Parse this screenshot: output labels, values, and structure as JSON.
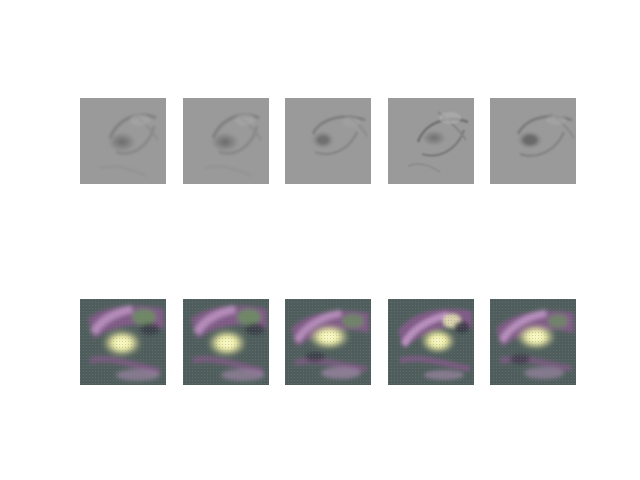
{
  "figure": {
    "rows": 2,
    "cols": 5,
    "top_row": {
      "description_key": "grayscale",
      "colors": {
        "background": "#9a9a9a",
        "dark": "#6e6e6e",
        "light": "#b0b0b0"
      },
      "panels": [
        {
          "id": "g1",
          "variant": "a"
        },
        {
          "id": "g2",
          "variant": "a"
        },
        {
          "id": "g3",
          "variant": "b"
        },
        {
          "id": "g4",
          "variant": "c"
        },
        {
          "id": "g5",
          "variant": "d"
        }
      ]
    },
    "bottom_row": {
      "description_key": "false-color",
      "colors": {
        "background": "#4f5e5c",
        "purple": "#8a5a8e",
        "pink": "#c79acb",
        "green": "#6d8d62",
        "yellow": "#f3f2b0",
        "dark": "#2f2f3a"
      },
      "panels": [
        {
          "id": "c1",
          "variant": "a"
        },
        {
          "id": "c2",
          "variant": "a"
        },
        {
          "id": "c3",
          "variant": "b"
        },
        {
          "id": "c4",
          "variant": "c"
        },
        {
          "id": "c5",
          "variant": "d"
        }
      ]
    }
  }
}
